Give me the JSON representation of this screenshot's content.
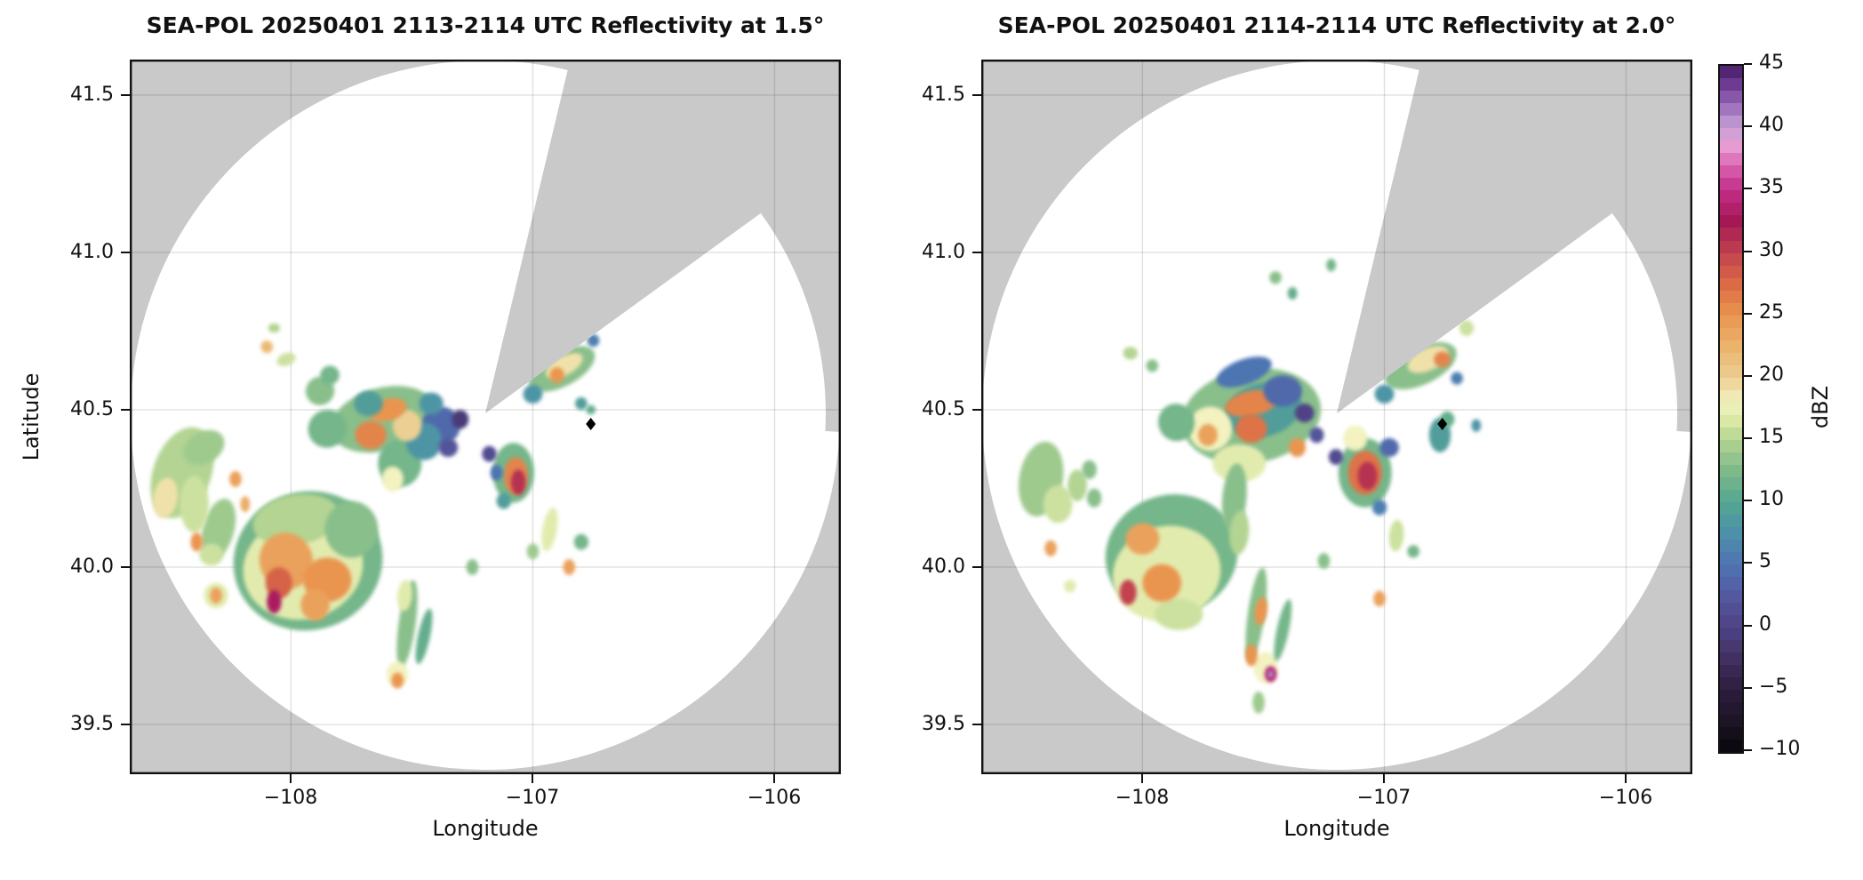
{
  "figure": {
    "background": "#ffffff",
    "panel_background_nodata": "#c9c9c9",
    "grid_color": "rgba(0,0,0,0.13)",
    "border_color": "#111111"
  },
  "panels": [
    {
      "title": "SEA-POL 20250401 2113-2114 UTC Reflectivity at 1.5°",
      "xlabel": "Longitude",
      "ylabel": "Latitude",
      "xticks": [
        -108,
        -107,
        -106
      ],
      "xtick_labels": [
        "−108",
        "−107",
        "−106"
      ],
      "yticks": [
        41.5,
        41.0,
        40.5,
        40.0,
        39.5
      ],
      "ytick_labels": [
        "41.5",
        "41.0",
        "40.5",
        "40.0",
        "39.5"
      ]
    },
    {
      "title": "SEA-POL 20250401 2114-2114 UTC Reflectivity at 2.0°",
      "xlabel": "Longitude",
      "ylabel": "",
      "xticks": [
        -108,
        -107,
        -106
      ],
      "xtick_labels": [
        "−108",
        "−107",
        "−106"
      ],
      "yticks": [
        41.5,
        41.0,
        40.5,
        40.0,
        39.5
      ],
      "ytick_labels": [
        "41.5",
        "41.0",
        "40.5",
        "40.0",
        "39.5"
      ]
    }
  ],
  "colorbar": {
    "label": "dBZ",
    "vmin": -10,
    "vmax": 45,
    "ticks": [
      45,
      40,
      35,
      30,
      25,
      20,
      15,
      10,
      5,
      0,
      -5,
      -10
    ],
    "tick_labels": [
      "45",
      "40",
      "35",
      "30",
      "25",
      "20",
      "15",
      "10",
      "5",
      "0",
      "−5",
      "−10"
    ]
  },
  "chart_data": {
    "type": "heatmap",
    "subtype": "radar_ppi_reflectivity",
    "titles": [
      "SEA-POL 20250401 2113-2114 UTC Reflectivity at 1.5°",
      "SEA-POL 20250401 2114-2114 UTC Reflectivity at 2.0°"
    ],
    "xlabel": "Longitude",
    "ylabel": "Latitude",
    "units": "dBZ",
    "xlim": [
      -108.667,
      -105.726
    ],
    "ylim": [
      39.342,
      41.613
    ],
    "grid": true,
    "legend_position": "right-colorbar",
    "radar_center": {
      "lon": -107.195,
      "lat": 40.477
    },
    "scan_range_deg": {
      "lon": 1.47,
      "lat": 1.135
    },
    "missing_sector_azimuth_deg": [
      13.5,
      54
    ],
    "reduced_range_sector_azimuth_deg": [
      54,
      93
    ],
    "site_marker": {
      "symbol": "diamond",
      "color": "#000000",
      "lon": -106.76,
      "lat": 40.455
    },
    "colormap_stops": [
      [
        -10,
        "#08060a"
      ],
      [
        -7.5,
        "#1d1426"
      ],
      [
        -5,
        "#2c1d3e"
      ],
      [
        -2.5,
        "#413061"
      ],
      [
        0,
        "#4f4386"
      ],
      [
        2.5,
        "#54599f"
      ],
      [
        5,
        "#4e74b2"
      ],
      [
        7.5,
        "#4d90aa"
      ],
      [
        10,
        "#53a690"
      ],
      [
        12.5,
        "#7eba89"
      ],
      [
        15,
        "#b3d492"
      ],
      [
        16.5,
        "#d9e8a5"
      ],
      [
        18,
        "#f3f2c0"
      ],
      [
        20,
        "#eccf93"
      ],
      [
        22.5,
        "#ecb36d"
      ],
      [
        25,
        "#e9954f"
      ],
      [
        27.5,
        "#db6b44"
      ],
      [
        30,
        "#c2424f"
      ],
      [
        32.5,
        "#a41955"
      ],
      [
        35,
        "#c22d87"
      ],
      [
        37,
        "#d964b1"
      ],
      [
        38.5,
        "#e79cd1"
      ],
      [
        40,
        "#c8a2d6"
      ],
      [
        41.5,
        "#a276bf"
      ],
      [
        43,
        "#7a47a0"
      ],
      [
        45,
        "#451a66"
      ]
    ],
    "echo_columns": [
      "lon",
      "lat",
      "dBZ",
      "width_deg",
      "height_deg",
      "rotation_deg"
    ],
    "echoes_panel1": [
      [
        -108.45,
        40.3,
        15,
        0.24,
        0.3,
        20
      ],
      [
        -108.52,
        40.22,
        19,
        0.1,
        0.13,
        10
      ],
      [
        -108.36,
        40.38,
        14,
        0.18,
        0.1,
        -30
      ],
      [
        -108.3,
        40.12,
        14,
        0.13,
        0.2,
        15
      ],
      [
        -108.4,
        40.2,
        16,
        0.12,
        0.18,
        0
      ],
      [
        -108.23,
        40.28,
        24,
        0.05,
        0.05,
        0
      ],
      [
        -108.19,
        40.2,
        23,
        0.04,
        0.05,
        0
      ],
      [
        -108.39,
        40.08,
        25,
        0.05,
        0.06,
        0
      ],
      [
        -108.33,
        40.04,
        16,
        0.1,
        0.07,
        0
      ],
      [
        -108.1,
        40.7,
        22,
        0.05,
        0.04,
        -20
      ],
      [
        -108.02,
        40.66,
        16,
        0.08,
        0.04,
        -20
      ],
      [
        -108.07,
        40.76,
        15,
        0.05,
        0.03,
        0
      ],
      [
        -107.93,
        40.02,
        12,
        0.62,
        0.44,
        -15
      ],
      [
        -107.95,
        40.0,
        17,
        0.5,
        0.33,
        -15
      ],
      [
        -107.98,
        40.15,
        15,
        0.36,
        0.16,
        -10
      ],
      [
        -108.02,
        40.02,
        24,
        0.22,
        0.18,
        -20
      ],
      [
        -107.85,
        39.96,
        25,
        0.2,
        0.14,
        0
      ],
      [
        -108.05,
        39.95,
        28,
        0.11,
        0.1,
        0
      ],
      [
        -108.07,
        39.89,
        33,
        0.06,
        0.075,
        0
      ],
      [
        -107.9,
        39.88,
        24,
        0.12,
        0.1,
        0
      ],
      [
        -107.75,
        40.12,
        13,
        0.22,
        0.18,
        0
      ],
      [
        -108.31,
        39.91,
        17,
        0.1,
        0.08,
        0
      ],
      [
        -108.31,
        39.91,
        24,
        0.05,
        0.05,
        0
      ],
      [
        -107.62,
        40.47,
        13,
        0.44,
        0.2,
        -15
      ],
      [
        -107.85,
        40.44,
        12,
        0.16,
        0.12,
        -35
      ],
      [
        -107.88,
        40.56,
        13,
        0.12,
        0.09,
        -40
      ],
      [
        -107.84,
        40.61,
        12,
        0.08,
        0.06,
        -30
      ],
      [
        -107.68,
        40.52,
        9,
        0.12,
        0.08,
        0
      ],
      [
        -107.6,
        40.5,
        25,
        0.16,
        0.07,
        -15
      ],
      [
        -107.67,
        40.42,
        26,
        0.13,
        0.09,
        0
      ],
      [
        -107.52,
        40.45,
        20,
        0.12,
        0.1,
        0
      ],
      [
        -107.45,
        40.4,
        8,
        0.15,
        0.12,
        0
      ],
      [
        -107.42,
        40.52,
        8,
        0.1,
        0.07,
        0
      ],
      [
        -107.38,
        40.45,
        4,
        0.16,
        0.12,
        0
      ],
      [
        -107.3,
        40.47,
        -1,
        0.07,
        0.06,
        0
      ],
      [
        -107.35,
        40.38,
        2,
        0.08,
        0.06,
        0
      ],
      [
        -107.55,
        40.33,
        12,
        0.18,
        0.15,
        0
      ],
      [
        -107.58,
        40.28,
        18,
        0.09,
        0.08,
        0
      ],
      [
        -107.25,
        40.0,
        13,
        0.05,
        0.05,
        0
      ],
      [
        -107.08,
        40.3,
        12,
        0.17,
        0.19,
        0
      ],
      [
        -107.07,
        40.29,
        26,
        0.1,
        0.12,
        0
      ],
      [
        -107.06,
        40.27,
        31,
        0.06,
        0.08,
        0
      ],
      [
        -107.18,
        40.36,
        1,
        0.06,
        0.05,
        0
      ],
      [
        -107.15,
        40.3,
        5,
        0.05,
        0.05,
        0
      ],
      [
        -107.12,
        40.21,
        9,
        0.06,
        0.05,
        0
      ],
      [
        -106.88,
        40.63,
        13,
        0.3,
        0.11,
        -28
      ],
      [
        -106.87,
        40.64,
        19,
        0.17,
        0.06,
        -28
      ],
      [
        -106.9,
        40.61,
        25,
        0.06,
        0.05,
        0
      ],
      [
        -107.0,
        40.55,
        8,
        0.08,
        0.06,
        -20
      ],
      [
        -106.75,
        40.72,
        6,
        0.05,
        0.04,
        0
      ],
      [
        -106.67,
        41.02,
        12,
        0.05,
        0.04,
        0
      ],
      [
        -106.63,
        40.96,
        9,
        0.04,
        0.04,
        0
      ],
      [
        -106.8,
        40.52,
        9,
        0.05,
        0.04,
        0
      ],
      [
        -106.76,
        40.5,
        11,
        0.04,
        0.03,
        0
      ],
      [
        -107.52,
        39.82,
        13,
        0.07,
        0.28,
        8
      ],
      [
        -107.53,
        39.91,
        17,
        0.06,
        0.1,
        5
      ],
      [
        -107.56,
        39.66,
        18,
        0.09,
        0.08,
        0
      ],
      [
        -107.56,
        39.64,
        25,
        0.05,
        0.05,
        0
      ],
      [
        -107.45,
        39.78,
        11,
        0.05,
        0.18,
        12
      ],
      [
        -106.93,
        40.12,
        17,
        0.06,
        0.14,
        10
      ],
      [
        -106.85,
        40.0,
        24,
        0.05,
        0.05,
        0
      ],
      [
        -106.8,
        40.08,
        12,
        0.06,
        0.05,
        0
      ],
      [
        -107.0,
        40.05,
        14,
        0.05,
        0.05,
        0
      ]
    ],
    "echoes_panel2": [
      [
        -108.42,
        40.28,
        14,
        0.18,
        0.24,
        10
      ],
      [
        -108.35,
        40.2,
        16,
        0.12,
        0.12,
        0
      ],
      [
        -108.27,
        40.26,
        15,
        0.08,
        0.1,
        0
      ],
      [
        -108.22,
        40.31,
        13,
        0.06,
        0.06,
        0
      ],
      [
        -108.38,
        40.06,
        24,
        0.05,
        0.05,
        0
      ],
      [
        -108.3,
        39.94,
        17,
        0.05,
        0.04,
        0
      ],
      [
        -108.05,
        40.68,
        15,
        0.06,
        0.04,
        0
      ],
      [
        -107.96,
        40.64,
        13,
        0.05,
        0.04,
        0
      ],
      [
        -107.45,
        40.92,
        13,
        0.05,
        0.04,
        0
      ],
      [
        -107.38,
        40.87,
        11,
        0.04,
        0.04,
        0
      ],
      [
        -107.22,
        40.96,
        12,
        0.04,
        0.04,
        0
      ],
      [
        -107.55,
        40.48,
        13,
        0.58,
        0.3,
        -10
      ],
      [
        -107.5,
        40.5,
        9,
        0.32,
        0.17,
        -15
      ],
      [
        -107.58,
        40.62,
        5,
        0.24,
        0.08,
        -20
      ],
      [
        -107.42,
        40.56,
        4,
        0.16,
        0.1,
        0
      ],
      [
        -107.33,
        40.49,
        0,
        0.08,
        0.06,
        0
      ],
      [
        -107.28,
        40.42,
        2,
        0.06,
        0.05,
        0
      ],
      [
        -107.55,
        40.52,
        26,
        0.22,
        0.08,
        -12
      ],
      [
        -107.55,
        40.44,
        27,
        0.13,
        0.09,
        0
      ],
      [
        -107.72,
        40.44,
        18,
        0.18,
        0.14,
        0
      ],
      [
        -107.73,
        40.42,
        24,
        0.08,
        0.07,
        0
      ],
      [
        -107.86,
        40.46,
        12,
        0.15,
        0.12,
        -20
      ],
      [
        -107.6,
        40.33,
        17,
        0.22,
        0.12,
        0
      ],
      [
        -107.36,
        40.38,
        25,
        0.07,
        0.06,
        0
      ],
      [
        -107.62,
        40.22,
        13,
        0.1,
        0.22,
        5
      ],
      [
        -107.6,
        40.11,
        15,
        0.08,
        0.14,
        5
      ],
      [
        -107.08,
        40.3,
        12,
        0.22,
        0.22,
        0
      ],
      [
        -107.08,
        40.3,
        27,
        0.14,
        0.14,
        0
      ],
      [
        -107.07,
        40.29,
        31,
        0.08,
        0.09,
        0
      ],
      [
        -107.12,
        40.41,
        18,
        0.1,
        0.08,
        0
      ],
      [
        -106.98,
        40.38,
        4,
        0.08,
        0.06,
        0
      ],
      [
        -107.2,
        40.35,
        1,
        0.06,
        0.05,
        0
      ],
      [
        -107.02,
        40.19,
        6,
        0.06,
        0.05,
        0
      ],
      [
        -106.85,
        40.64,
        13,
        0.32,
        0.12,
        -25
      ],
      [
        -106.82,
        40.66,
        19,
        0.18,
        0.07,
        -25
      ],
      [
        -106.76,
        40.66,
        26,
        0.07,
        0.05,
        0
      ],
      [
        -107.0,
        40.55,
        8,
        0.08,
        0.06,
        0
      ],
      [
        -106.66,
        40.76,
        16,
        0.06,
        0.05,
        0
      ],
      [
        -106.7,
        40.6,
        6,
        0.05,
        0.04,
        0
      ],
      [
        -106.77,
        40.42,
        9,
        0.09,
        0.11,
        0
      ],
      [
        -106.74,
        40.47,
        11,
        0.06,
        0.05,
        0
      ],
      [
        -106.62,
        40.45,
        8,
        0.04,
        0.04,
        0
      ],
      [
        -107.88,
        40.04,
        12,
        0.55,
        0.38,
        -15
      ],
      [
        -107.9,
        39.98,
        17,
        0.45,
        0.3,
        -15
      ],
      [
        -108.0,
        40.09,
        24,
        0.14,
        0.1,
        -10
      ],
      [
        -107.92,
        39.95,
        25,
        0.16,
        0.12,
        0
      ],
      [
        -108.06,
        39.92,
        30,
        0.07,
        0.08,
        0
      ],
      [
        -107.85,
        39.85,
        16,
        0.2,
        0.1,
        0
      ],
      [
        -108.2,
        40.22,
        13,
        0.06,
        0.06,
        0
      ],
      [
        -107.53,
        39.85,
        13,
        0.07,
        0.3,
        8
      ],
      [
        -107.51,
        39.86,
        25,
        0.05,
        0.09,
        8
      ],
      [
        -107.55,
        39.72,
        25,
        0.05,
        0.07,
        0
      ],
      [
        -107.49,
        39.68,
        18,
        0.1,
        0.1,
        0
      ],
      [
        -107.47,
        39.66,
        34,
        0.05,
        0.05,
        0
      ],
      [
        -107.47,
        39.66,
        41,
        0.025,
        0.025,
        0
      ],
      [
        -107.42,
        39.8,
        12,
        0.05,
        0.2,
        12
      ],
      [
        -107.52,
        39.57,
        14,
        0.05,
        0.07,
        0
      ],
      [
        -106.95,
        40.1,
        16,
        0.06,
        0.1,
        5
      ],
      [
        -107.02,
        39.9,
        24,
        0.05,
        0.05,
        0
      ],
      [
        -106.88,
        40.05,
        12,
        0.05,
        0.04,
        0
      ],
      [
        -107.25,
        40.02,
        13,
        0.05,
        0.05,
        0
      ]
    ]
  }
}
